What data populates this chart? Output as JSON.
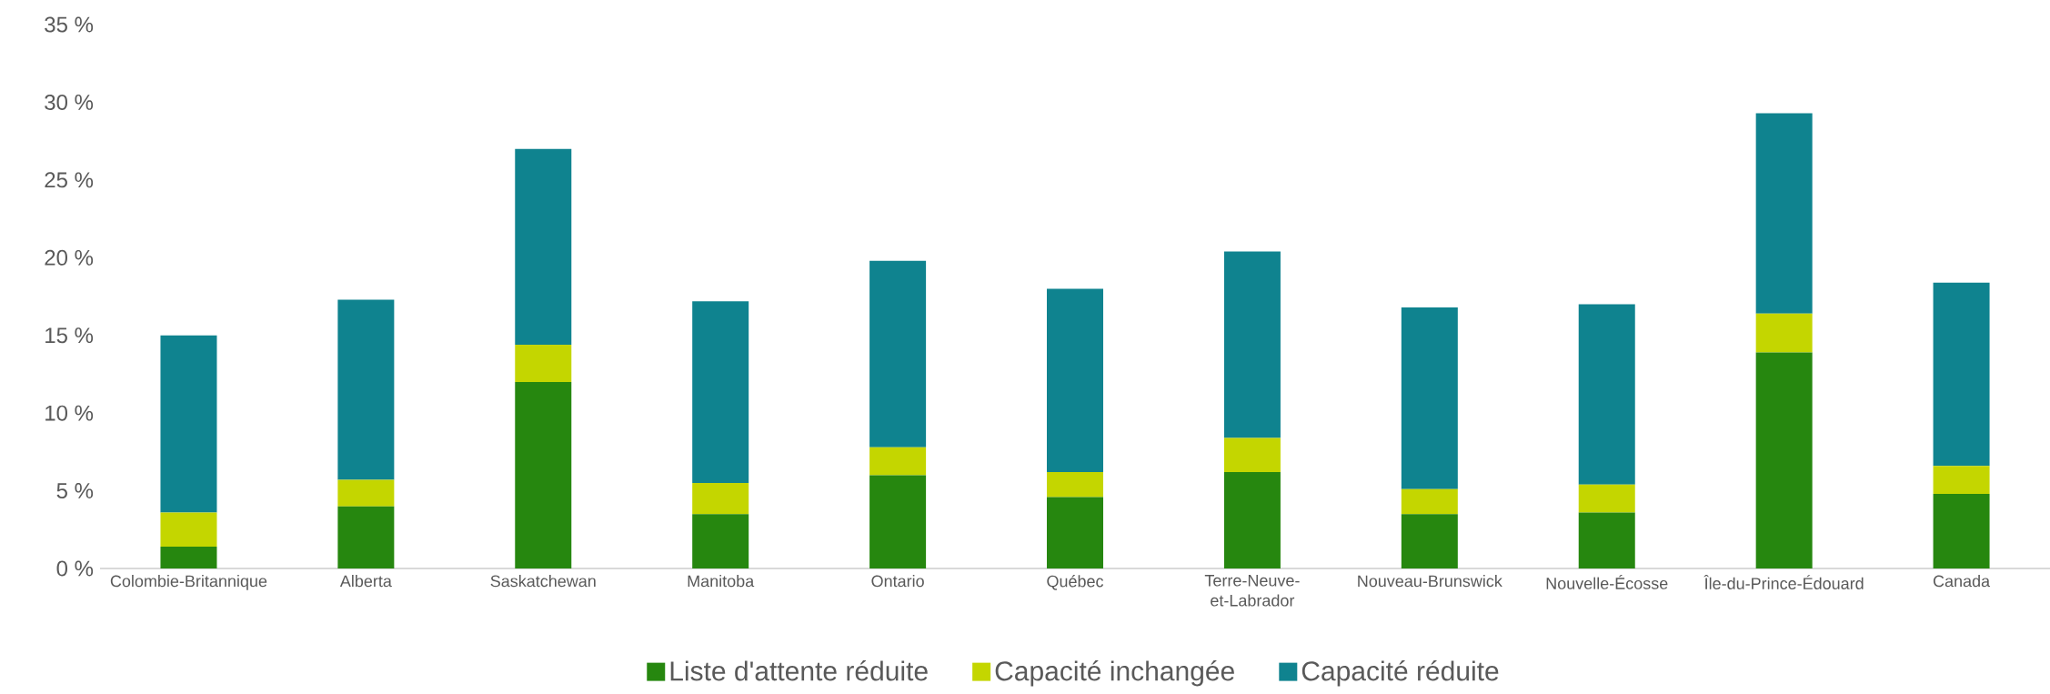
{
  "chart_data": {
    "type": "bar",
    "stacked": true,
    "categories": [
      "Colombie-Britannique",
      "Alberta",
      "Saskatchewan",
      "Manitoba",
      "Ontario",
      "Québec",
      "Terre-Neuve-et-Labrador",
      "Nouveau-Brunswick",
      "Nouvelle-Écosse",
      "Île-du-Prince-Édouard",
      "Canada"
    ],
    "series": [
      {
        "name": "Liste d'attente réduite",
        "color": "#26870f",
        "values": [
          1.4,
          4.0,
          12.0,
          3.5,
          6.0,
          4.6,
          6.2,
          3.5,
          3.6,
          13.9,
          4.8
        ]
      },
      {
        "name": "Capacité inchangée",
        "color": "#c4d600",
        "values": [
          2.2,
          1.7,
          2.4,
          2.0,
          1.8,
          1.6,
          2.2,
          1.6,
          1.8,
          2.5,
          1.8
        ]
      },
      {
        "name": "Capacité réduite",
        "color": "#0f838f",
        "values": [
          11.4,
          11.6,
          12.6,
          11.7,
          12.0,
          11.8,
          12.0,
          11.7,
          11.6,
          12.9,
          11.8
        ]
      }
    ],
    "ylim": [
      0,
      35
    ],
    "yticks": [
      {
        "value": 0,
        "label": "0 %"
      },
      {
        "value": 5,
        "label": "5 %"
      },
      {
        "value": 10,
        "label": "10 %"
      },
      {
        "value": 15,
        "label": "15 %"
      },
      {
        "value": 20,
        "label": "20 %"
      },
      {
        "value": 25,
        "label": "25 %"
      },
      {
        "value": 30,
        "label": "30 %"
      },
      {
        "value": 35,
        "label": "35 %"
      }
    ],
    "legend": "bottom"
  }
}
